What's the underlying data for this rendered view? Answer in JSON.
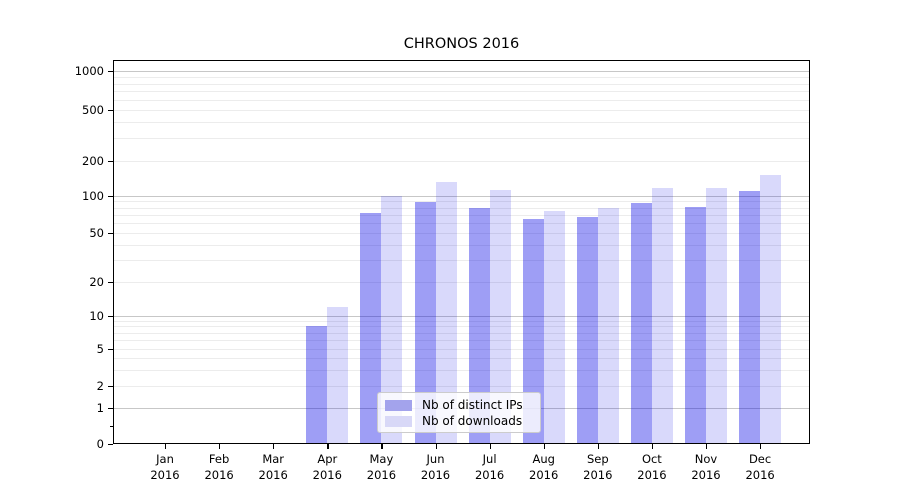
{
  "chart_data": {
    "type": "bar",
    "title": "CHRONOS 2016",
    "categories": [
      "Jan 2016",
      "Feb 2016",
      "Mar 2016",
      "Apr 2016",
      "May 2016",
      "Jun 2016",
      "Jul 2016",
      "Aug 2016",
      "Sep 2016",
      "Oct 2016",
      "Nov 2016",
      "Dec 2016"
    ],
    "series": [
      {
        "name": "Nb of distinct IPs",
        "color": "rgba(0,0,230,0.38)",
        "legend_color": "#a3a3ec",
        "values": [
          0,
          0,
          0,
          8,
          73,
          88,
          80,
          65,
          67,
          87,
          81,
          110
        ]
      },
      {
        "name": "Nb of downloads",
        "color": "rgba(0,0,230,0.15)",
        "legend_color": "#d8d8f7",
        "values": [
          0,
          0,
          0,
          12,
          100,
          130,
          111,
          75,
          79,
          116,
          117,
          150
        ]
      }
    ],
    "xlabel": "",
    "ylabel": "",
    "yscale": "symlog",
    "yticks": [
      0,
      1,
      2,
      5,
      10,
      20,
      50,
      100,
      200,
      500,
      1000
    ],
    "ylim": [
      0,
      1200
    ],
    "grid": true,
    "legend_position": "lower center",
    "colors": {
      "background": "#ffffff",
      "axis": "#000000",
      "grid_major": "#c7c7c7",
      "grid_minor": "#ececec",
      "legend_border": "#cccccc"
    }
  }
}
